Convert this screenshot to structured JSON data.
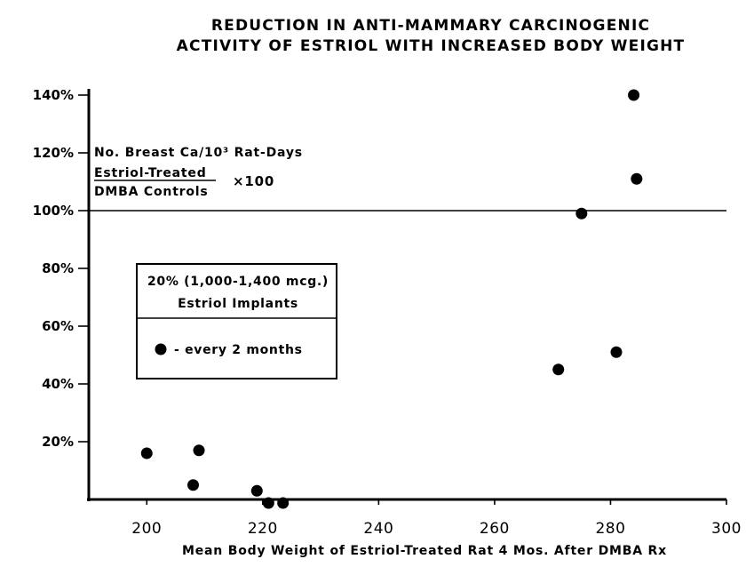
{
  "chart_data": {
    "type": "scatter",
    "title_lines": [
      "REDUCTION IN ANTI-MAMMARY CARCINOGENIC",
      "ACTIVITY OF ESTRIOL WITH INCREASED BODY WEIGHT"
    ],
    "xlabel": "Mean Body Weight of Estriol-Treated Rat 4 Mos. After DMBA Rx",
    "ylabel_lines": [
      "No. Breast Ca/10³ Rat-Days",
      "Estriol-Treated",
      "DMBA Controls"
    ],
    "ylabel_multiplier": "×100",
    "xlim": [
      190,
      300
    ],
    "ylim": [
      0,
      140
    ],
    "x_ticks": [
      {
        "value": 200,
        "label": "200"
      },
      {
        "value": 220,
        "label": "220"
      },
      {
        "value": 240,
        "label": "240"
      },
      {
        "value": 260,
        "label": "260"
      },
      {
        "value": 280,
        "label": "280"
      },
      {
        "value": 300,
        "label": "300"
      }
    ],
    "y_ticks": [
      {
        "value": 20,
        "label": "20%"
      },
      {
        "value": 40,
        "label": "40%"
      },
      {
        "value": 60,
        "label": "60%"
      },
      {
        "value": 80,
        "label": "80%"
      },
      {
        "value": 100,
        "label": "100%"
      },
      {
        "value": 120,
        "label": "120%"
      },
      {
        "value": 140,
        "label": "140%"
      }
    ],
    "reference_line": {
      "y": 100
    },
    "legend": {
      "box_lines": [
        "20% (1,000-1,400 mcg.)",
        "Estriol Implants"
      ],
      "marker_label": "- every 2 months",
      "placement": "center-left"
    },
    "series": [
      {
        "name": "every 2 months",
        "points": [
          {
            "x": 200,
            "y": 16
          },
          {
            "x": 209,
            "y": 17
          },
          {
            "x": 208,
            "y": 5
          },
          {
            "x": 219,
            "y": 3
          },
          {
            "x": 221,
            "y": 0
          },
          {
            "x": 223.5,
            "y": 0
          },
          {
            "x": 271,
            "y": 45
          },
          {
            "x": 275,
            "y": 99
          },
          {
            "x": 281,
            "y": 51
          },
          {
            "x": 284,
            "y": 140
          },
          {
            "x": 284.5,
            "y": 111
          }
        ]
      }
    ]
  }
}
